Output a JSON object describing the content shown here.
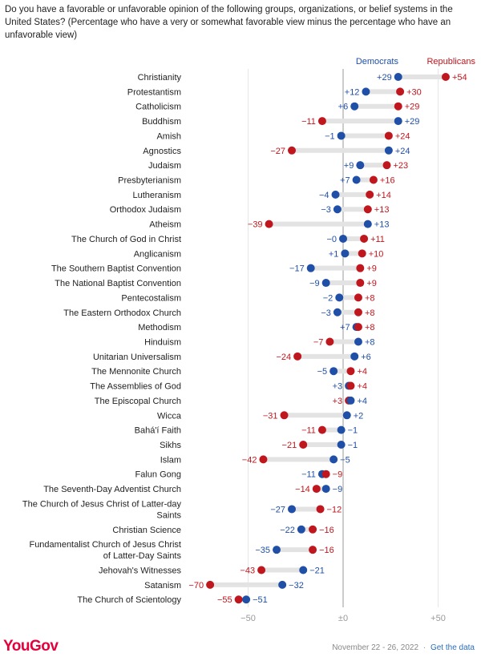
{
  "title": "Do you have a favorable or unfavorable opinion of the following groups, organizations, or belief systems in the United States? (Percentage who have a very or somewhat favorable view minus the percentage who have an unfavorable view)",
  "brand": "YouGov",
  "footer": {
    "date": "November 22 - 26, 2022",
    "separator": "·",
    "link_label": "Get the data"
  },
  "colors": {
    "democrats": "#1f4fa6",
    "republicans": "#c0161d",
    "connector": "#e3e3e3",
    "zero_line": "#9a9a9a",
    "gridline": "#e6e6e6",
    "brand": "#e4003b"
  },
  "chart_data": {
    "type": "dot-dumbbell",
    "legend_position": "top-right",
    "series": [
      {
        "name": "Democrats",
        "key": "dem"
      },
      {
        "name": "Republicans",
        "key": "rep"
      }
    ],
    "x_ticks": [
      {
        "value": -50,
        "label": "−50"
      },
      {
        "value": 0,
        "label": "±0"
      },
      {
        "value": 50,
        "label": "+50"
      }
    ],
    "xlim": [
      -75,
      62
    ],
    "rows": [
      {
        "label": [
          "Christianity"
        ],
        "dem": 29,
        "rep": 54,
        "dem_label": "+29",
        "rep_label": "+54"
      },
      {
        "label": [
          "Protestantism"
        ],
        "dem": 12,
        "rep": 30,
        "dem_label": "+12",
        "rep_label": "+30"
      },
      {
        "label": [
          "Catholicism"
        ],
        "dem": 6,
        "rep": 29,
        "dem_label": "+6",
        "rep_label": "+29"
      },
      {
        "label": [
          "Buddhism"
        ],
        "dem": 29,
        "rep": -11,
        "dem_label": "+29",
        "rep_label": "−11"
      },
      {
        "label": [
          "Amish"
        ],
        "dem": -1,
        "rep": 24,
        "dem_label": "−1",
        "rep_label": "+24"
      },
      {
        "label": [
          "Agnostics"
        ],
        "dem": 24,
        "rep": -27,
        "dem_label": "+24",
        "rep_label": "−27"
      },
      {
        "label": [
          "Judaism"
        ],
        "dem": 9,
        "rep": 23,
        "dem_label": "+9",
        "rep_label": "+23"
      },
      {
        "label": [
          "Presbyterianism"
        ],
        "dem": 7,
        "rep": 16,
        "dem_label": "+7",
        "rep_label": "+16"
      },
      {
        "label": [
          "Lutheranism"
        ],
        "dem": -4,
        "rep": 14,
        "dem_label": "−4",
        "rep_label": "+14"
      },
      {
        "label": [
          "Orthodox Judaism"
        ],
        "dem": -3,
        "rep": 13,
        "dem_label": "−3",
        "rep_label": "+13"
      },
      {
        "label": [
          "Atheism"
        ],
        "dem": 13,
        "rep": -39,
        "dem_label": "+13",
        "rep_label": "−39"
      },
      {
        "label": [
          "The Church of God in Christ"
        ],
        "dem": 0,
        "rep": 11,
        "dem_label": "−0",
        "rep_label": "+11"
      },
      {
        "label": [
          "Anglicanism"
        ],
        "dem": 1,
        "rep": 10,
        "dem_label": "+1",
        "rep_label": "+10"
      },
      {
        "label": [
          "The Southern Baptist Convention"
        ],
        "dem": -17,
        "rep": 9,
        "dem_label": "−17",
        "rep_label": "+9"
      },
      {
        "label": [
          "The National Baptist Convention"
        ],
        "dem": -9,
        "rep": 9,
        "dem_label": "−9",
        "rep_label": "+9"
      },
      {
        "label": [
          "Pentecostalism"
        ],
        "dem": -2,
        "rep": 8,
        "dem_label": "−2",
        "rep_label": "+8"
      },
      {
        "label": [
          "The Eastern Orthodox Church"
        ],
        "dem": -3,
        "rep": 8,
        "dem_label": "−3",
        "rep_label": "+8"
      },
      {
        "label": [
          "Methodism"
        ],
        "dem": 7,
        "rep": 8,
        "dem_label": "+7",
        "rep_label": "+8"
      },
      {
        "label": [
          "Hinduism"
        ],
        "dem": 8,
        "rep": -7,
        "dem_label": "+8",
        "rep_label": "−7"
      },
      {
        "label": [
          "Unitarian Universalism"
        ],
        "dem": 6,
        "rep": -24,
        "dem_label": "+6",
        "rep_label": "−24"
      },
      {
        "label": [
          "The Mennonite Church"
        ],
        "dem": -5,
        "rep": 4,
        "dem_label": "−5",
        "rep_label": "+4"
      },
      {
        "label": [
          "The Assemblies of God"
        ],
        "dem": 3,
        "rep": 4,
        "dem_label": "+3",
        "rep_label": "+4"
      },
      {
        "label": [
          "The Episcopal Church"
        ],
        "dem": 4,
        "rep": 3,
        "dem_label": "+4",
        "rep_label": "+3"
      },
      {
        "label": [
          "Wicca"
        ],
        "dem": 2,
        "rep": -31,
        "dem_label": "+2",
        "rep_label": "−31"
      },
      {
        "label": [
          "Bahá'í Faith"
        ],
        "dem": -1,
        "rep": -11,
        "dem_label": "−1",
        "rep_label": "−11"
      },
      {
        "label": [
          "Sikhs"
        ],
        "dem": -1,
        "rep": -21,
        "dem_label": "−1",
        "rep_label": "−21"
      },
      {
        "label": [
          "Islam"
        ],
        "dem": -5,
        "rep": -42,
        "dem_label": "−5",
        "rep_label": "−42"
      },
      {
        "label": [
          "Falun Gong"
        ],
        "dem": -11,
        "rep": -9,
        "dem_label": "−11",
        "rep_label": "−9"
      },
      {
        "label": [
          "The Seventh-Day Adventist Church"
        ],
        "dem": -9,
        "rep": -14,
        "dem_label": "−9",
        "rep_label": "−14"
      },
      {
        "label": [
          "The Church of Jesus Christ of Latter-day",
          "Saints"
        ],
        "dem": -27,
        "rep": -12,
        "dem_label": "−27",
        "rep_label": "−12"
      },
      {
        "label": [
          "Christian Science"
        ],
        "dem": -22,
        "rep": -16,
        "dem_label": "−22",
        "rep_label": "−16"
      },
      {
        "label": [
          "Fundamentalist Church of Jesus Christ",
          "of Latter-Day Saints"
        ],
        "dem": -35,
        "rep": -16,
        "dem_label": "−35",
        "rep_label": "−16"
      },
      {
        "label": [
          "Jehovah's Witnesses"
        ],
        "dem": -21,
        "rep": -43,
        "dem_label": "−21",
        "rep_label": "−43"
      },
      {
        "label": [
          "Satanism"
        ],
        "dem": -32,
        "rep": -70,
        "dem_label": "−32",
        "rep_label": "−70"
      },
      {
        "label": [
          "The Church of Scientology"
        ],
        "dem": -51,
        "rep": -55,
        "dem_label": "−51",
        "rep_label": "−55"
      }
    ]
  }
}
